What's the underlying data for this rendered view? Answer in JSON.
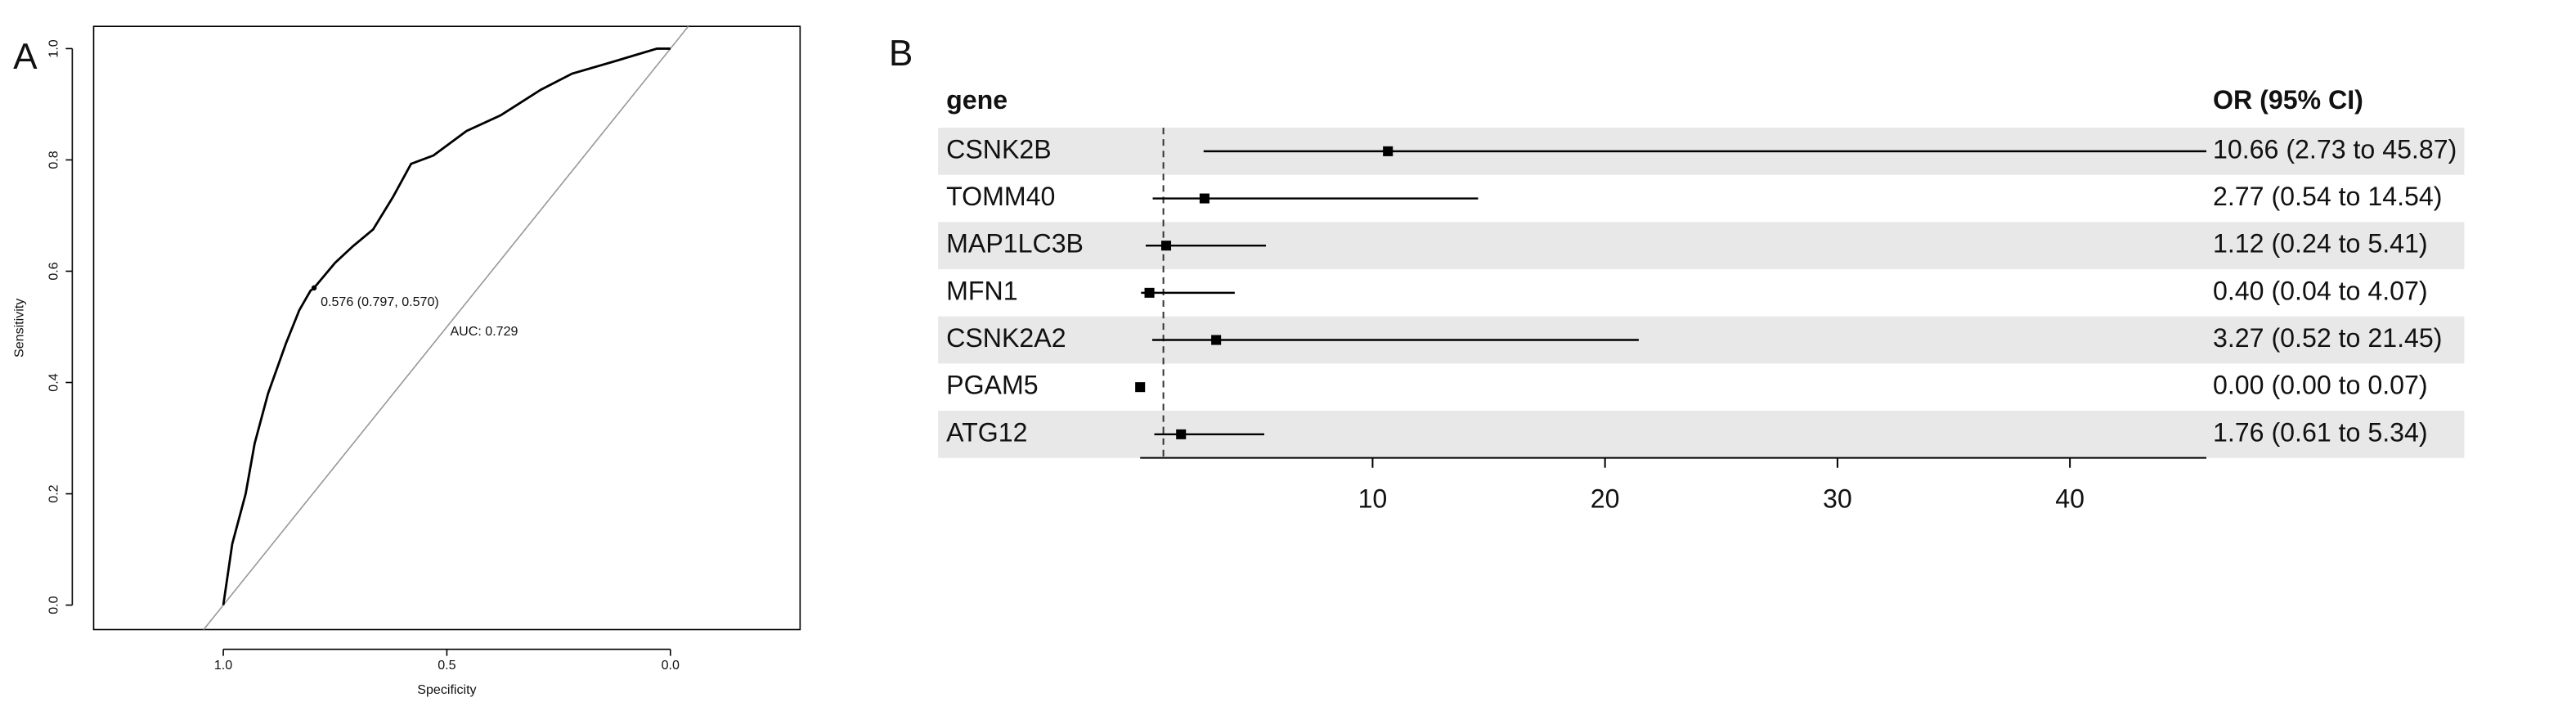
{
  "chart_data": [
    {
      "type": "roc",
      "panel": "A",
      "xlabel": "Specificity",
      "ylabel": "Sensitivity",
      "x": [
        1.0,
        0.98,
        0.95,
        0.93,
        0.9,
        0.86,
        0.83,
        0.805,
        0.797,
        0.75,
        0.71,
        0.665,
        0.62,
        0.58,
        0.53,
        0.456,
        0.38,
        0.29,
        0.22,
        0.13,
        0.03,
        0.0
      ],
      "values": [
        0.0,
        0.11,
        0.2,
        0.29,
        0.38,
        0.47,
        0.53,
        0.565,
        0.57,
        0.615,
        0.645,
        0.675,
        0.734,
        0.793,
        0.808,
        0.852,
        0.88,
        0.926,
        0.955,
        0.976,
        1.0,
        1.0
      ],
      "color": "#000000",
      "diagonal": true,
      "diagonal_color": "#999999",
      "threshold": {
        "x": 0.797,
        "y": 0.57,
        "label": "0.576 (0.797, 0.570)"
      },
      "auc_label": "AUC: 0.729",
      "xlim": [
        1.29,
        -0.29
      ],
      "ylim": [
        -0.044,
        1.04
      ],
      "xticks": [
        {
          "value": 1,
          "label": "1.0"
        },
        0.5,
        {
          "value": 0,
          "label": "0.0"
        }
      ],
      "yticks": [
        {
          "value": 0,
          "label": "0.0"
        },
        0.2,
        0.4,
        0.6,
        0.8,
        {
          "value": 1,
          "label": "1.0"
        }
      ]
    },
    {
      "type": "forest",
      "panel": "B",
      "columns": [
        "gene",
        "OR (95% CI)"
      ],
      "categories": [
        "CSNK2B",
        "TOMM40",
        "MAP1LC3B",
        "MFN1",
        "CSNK2A2",
        "PGAM5",
        "ATG12"
      ],
      "values": [
        10.66,
        2.77,
        1.12,
        0.4,
        3.27,
        0.0,
        1.76
      ],
      "lower": [
        2.73,
        0.54,
        0.24,
        0.04,
        0.52,
        0.0,
        0.61
      ],
      "upper": [
        45.87,
        14.54,
        5.41,
        4.07,
        21.45,
        0.07,
        5.34
      ],
      "value_labels": [
        "10.66 (2.73 to 45.87)",
        "2.77 (0.54 to 14.54)",
        "1.12 (0.24 to 5.41)",
        "0.40 (0.04 to 4.07)",
        "3.27 (0.52 to 21.45)",
        "0.00 (0.00 to 0.07)",
        "1.76 (0.61 to 5.34)"
      ],
      "xlim": [
        0,
        45.87
      ],
      "xticks": [
        10,
        20,
        30,
        40
      ],
      "reference_line": 1,
      "color": "#000000",
      "stripe_color": "#e8e8e8"
    }
  ]
}
